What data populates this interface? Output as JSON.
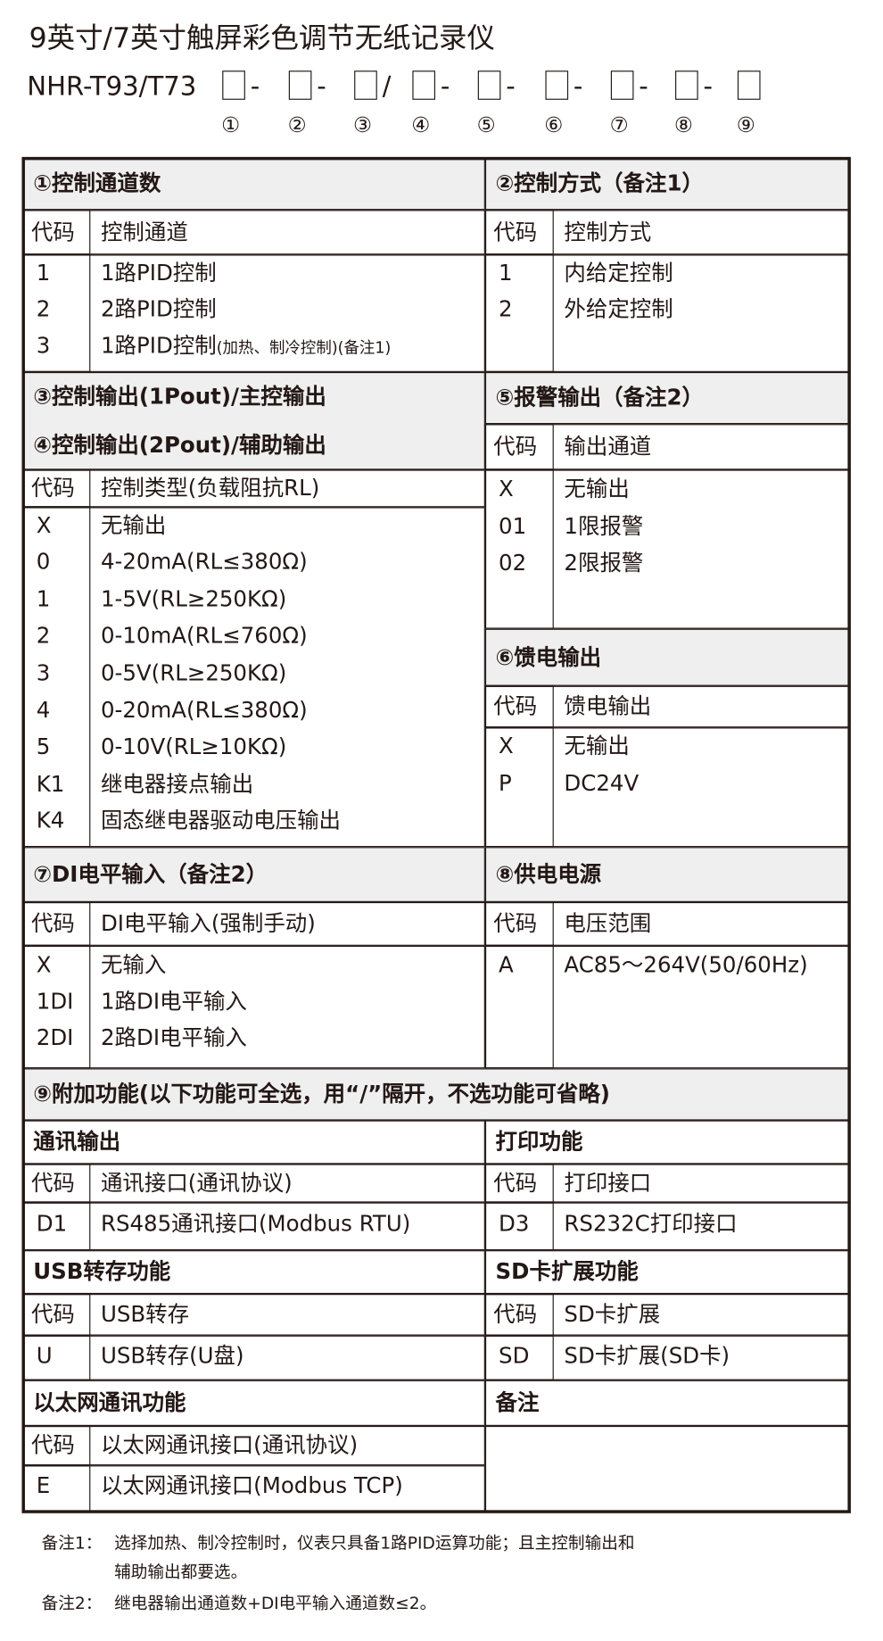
{
  "title": "9英寸/7英寸触屏彩色调节无纸记录仪",
  "model": {
    "prefix": "NHR-T93/T73",
    "separators": [
      "-",
      "-",
      "/",
      "-",
      "-",
      "-",
      "-",
      "-"
    ],
    "positions": [
      "①",
      "②",
      "③",
      "④",
      "⑤",
      "⑥",
      "⑦",
      "⑧",
      "⑨"
    ]
  },
  "s1": {
    "title": "①控制通道数",
    "header": [
      "代码",
      "控制通道"
    ],
    "rows": [
      [
        "1",
        "1路PID控制",
        ""
      ],
      [
        "2",
        "2路PID控制",
        ""
      ],
      [
        "3",
        "1路PID控制",
        "(加热、制冷控制)(备注1)"
      ]
    ]
  },
  "s2": {
    "title": "②控制方式（备注1）",
    "header": [
      "代码",
      "控制方式"
    ],
    "rows": [
      [
        "1",
        "内给定控制"
      ],
      [
        "2",
        "外给定控制"
      ]
    ]
  },
  "s34": {
    "title1": "③控制输出(1Pout)/主控输出",
    "title2": "④控制输出(2Pout)/辅助输出",
    "header": [
      "代码",
      "控制类型(负载阻抗RL)"
    ],
    "rows": [
      [
        "X",
        "无输出"
      ],
      [
        "0",
        "4-20mA(RL≤380Ω)"
      ],
      [
        "1",
        "1-5V(RL≥250KΩ)"
      ],
      [
        "2",
        "0-10mA(RL≤760Ω)"
      ],
      [
        "3",
        "0-5V(RL≥250KΩ)"
      ],
      [
        "4",
        "0-20mA(RL≤380Ω)"
      ],
      [
        "5",
        "0-10V(RL≥10KΩ)"
      ],
      [
        "K1",
        "继电器接点输出"
      ],
      [
        "K4",
        "固态继电器驱动电压输出"
      ]
    ]
  },
  "s5": {
    "title": "⑤报警输出（备注2）",
    "header": [
      "代码",
      "输出通道"
    ],
    "rows": [
      [
        "X",
        "无输出"
      ],
      [
        "01",
        "1限报警"
      ],
      [
        "02",
        "2限报警"
      ]
    ]
  },
  "s6": {
    "title": "⑥馈电输出",
    "header": [
      "代码",
      "馈电输出"
    ],
    "rows": [
      [
        "X",
        "无输出"
      ],
      [
        "P",
        "DC24V"
      ]
    ]
  },
  "s7": {
    "title": "⑦DI电平输入（备注2）",
    "header": [
      "代码",
      "DI电平输入(强制手动)"
    ],
    "rows": [
      [
        "X",
        "无输入"
      ],
      [
        "1DI",
        "1路DI电平输入"
      ],
      [
        "2DI",
        "2路DI电平输入"
      ]
    ]
  },
  "s8": {
    "title": "⑧供电电源",
    "header": [
      "代码",
      "电压范围"
    ],
    "rows": [
      [
        "A",
        "AC85～264V(50/60Hz)"
      ]
    ]
  },
  "s9": {
    "title": "⑨附加功能(以下功能可全选，用“/”隔开，不选功能可省略)"
  },
  "comm": {
    "title": "通讯输出",
    "header": [
      "代码",
      "通讯接口(通讯协议)"
    ],
    "rows": [
      [
        "D1",
        "RS485通讯接口(Modbus RTU)"
      ]
    ]
  },
  "print": {
    "title": "打印功能",
    "header": [
      "代码",
      "打印接口"
    ],
    "rows": [
      [
        "D3",
        "RS232C打印接口"
      ]
    ]
  },
  "usb": {
    "title": "USB转存功能",
    "header": [
      "代码",
      "USB转存"
    ],
    "rows": [
      [
        "U",
        "USB转存(U盘)"
      ]
    ]
  },
  "sd": {
    "title": "SD卡扩展功能",
    "header": [
      "代码",
      "SD卡扩展"
    ],
    "rows": [
      [
        "SD",
        "SD卡扩展(SD卡)"
      ]
    ]
  },
  "eth": {
    "title": "以太网通讯功能",
    "header": [
      "代码",
      "以太网通讯接口(通讯协议)"
    ],
    "rows": [
      [
        "E",
        "以太网通讯接口(Modbus TCP)"
      ]
    ]
  },
  "remarks": {
    "title": "备注"
  },
  "notes": {
    "n1_label": "备注1：",
    "n1_line1": "选择加热、制冷控制时，仪表只具备1路PID运算功能；且主控制输出和",
    "n1_line2": "辅助输出都要选。",
    "n2_label": "备注2：",
    "n2_line1": "继电器输出通道数+DI电平输入通道数≤2。"
  }
}
